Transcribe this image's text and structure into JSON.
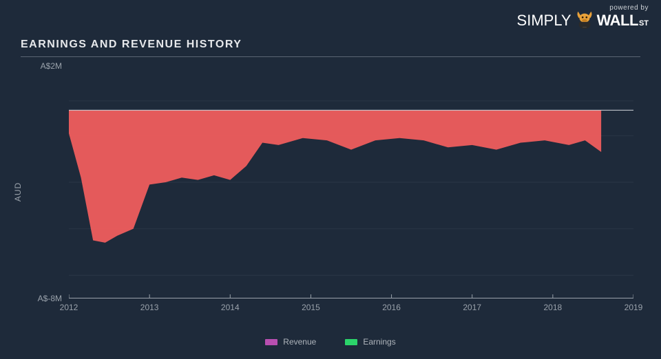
{
  "brand": {
    "powered": "powered by",
    "simply": "SIMPLY",
    "wall": "WALL",
    "st": "ST"
  },
  "title": "EARNINGS AND REVENUE HISTORY",
  "chart": {
    "type": "area",
    "background_color": "#1e2a3a",
    "gridline_color": "#2a3646",
    "axis_line_color": "#9aa2ab",
    "baseline_color": "#d7dbe0",
    "text_color": "#9aa2ab",
    "label_fontsize": 12,
    "y_axis_label": "AUD",
    "ylim": [
      -8,
      2
    ],
    "y_ticks": [
      {
        "value": 2,
        "label": "A$2M"
      },
      {
        "value": -8,
        "label": "A$-8M"
      }
    ],
    "y_gridlines": [
      0.5,
      -1.0,
      -3.0,
      -5.0,
      -7.0
    ],
    "xlim": [
      2012,
      2019
    ],
    "x_ticks": [
      2012,
      2013,
      2014,
      2015,
      2016,
      2017,
      2018,
      2019
    ],
    "series": [
      {
        "name": "Revenue",
        "legend_color": "#b84fb0",
        "fill_type": "from_baseline_down",
        "fill_color": "#ef5d5d",
        "fill_opacity": 0.95,
        "line_color": "#ef5d5d",
        "line_width": 0,
        "baseline": 0.1,
        "points": [
          {
            "x": 2012.0,
            "y": -0.9
          },
          {
            "x": 2012.15,
            "y": -2.8
          },
          {
            "x": 2012.3,
            "y": -5.5
          },
          {
            "x": 2012.45,
            "y": -5.6
          },
          {
            "x": 2012.6,
            "y": -5.3
          },
          {
            "x": 2012.8,
            "y": -5.0
          },
          {
            "x": 2013.0,
            "y": -3.1
          },
          {
            "x": 2013.2,
            "y": -3.0
          },
          {
            "x": 2013.4,
            "y": -2.8
          },
          {
            "x": 2013.6,
            "y": -2.9
          },
          {
            "x": 2013.8,
            "y": -2.7
          },
          {
            "x": 2014.0,
            "y": -2.9
          },
          {
            "x": 2014.2,
            "y": -2.3
          },
          {
            "x": 2014.4,
            "y": -1.3
          },
          {
            "x": 2014.6,
            "y": -1.4
          },
          {
            "x": 2014.9,
            "y": -1.1
          },
          {
            "x": 2015.2,
            "y": -1.2
          },
          {
            "x": 2015.5,
            "y": -1.6
          },
          {
            "x": 2015.8,
            "y": -1.2
          },
          {
            "x": 2016.1,
            "y": -1.1
          },
          {
            "x": 2016.4,
            "y": -1.2
          },
          {
            "x": 2016.7,
            "y": -1.5
          },
          {
            "x": 2017.0,
            "y": -1.4
          },
          {
            "x": 2017.3,
            "y": -1.6
          },
          {
            "x": 2017.6,
            "y": -1.3
          },
          {
            "x": 2017.9,
            "y": -1.2
          },
          {
            "x": 2018.2,
            "y": -1.4
          },
          {
            "x": 2018.4,
            "y": -1.2
          },
          {
            "x": 2018.6,
            "y": -1.7
          }
        ]
      },
      {
        "name": "Earnings",
        "legend_color": "#2bd46a",
        "fill_type": "none",
        "fill_color": "#2bd46a",
        "fill_opacity": 0,
        "line_color": "#2bd46a",
        "line_width": 0,
        "points": []
      }
    ],
    "legend": {
      "items": [
        {
          "label": "Revenue",
          "color": "#b84fb0"
        },
        {
          "label": "Earnings",
          "color": "#2bd46a"
        }
      ]
    }
  }
}
